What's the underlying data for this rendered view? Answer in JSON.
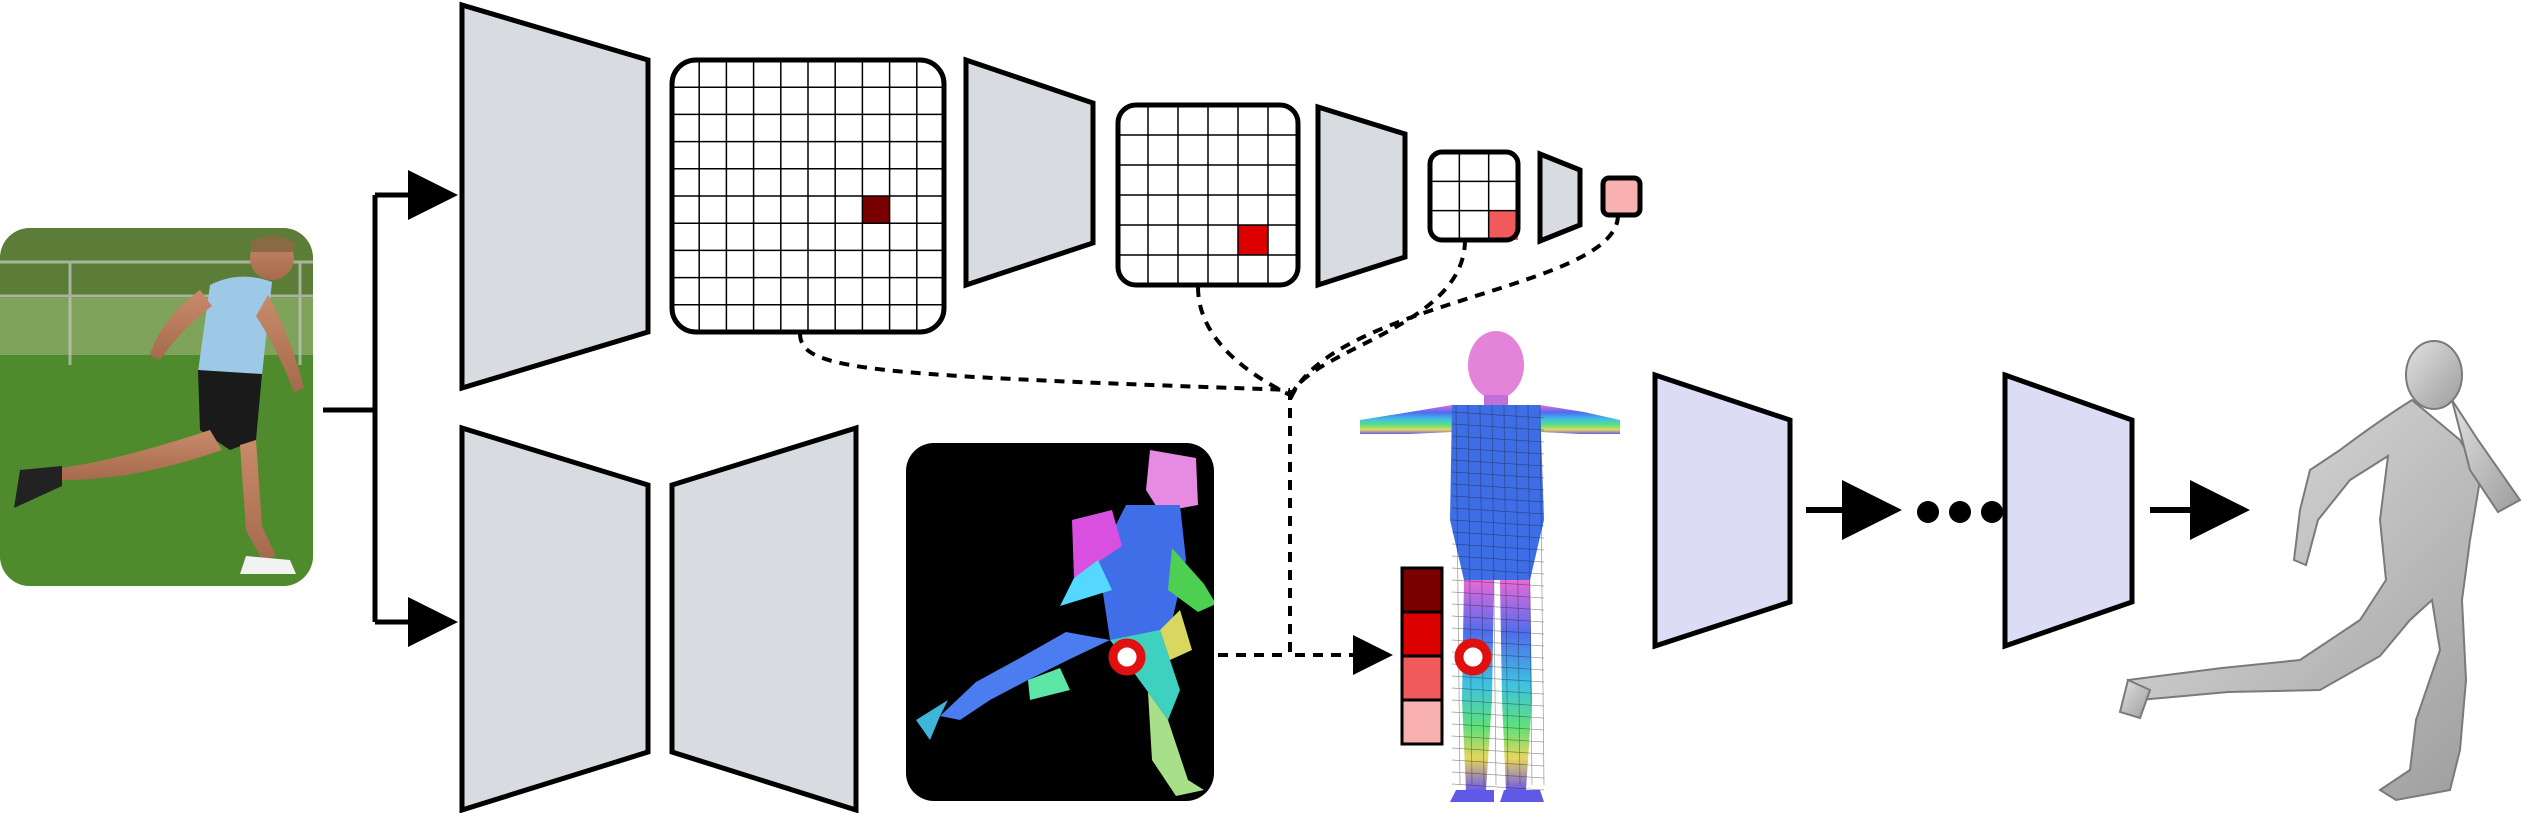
{
  "colors": {
    "encoder_fill": "#d8dce1",
    "regressor_fill": "#dcdcf4",
    "stroke": "#000000",
    "grid_background": "#ffffff",
    "feature_dark": "#7a0000",
    "feature_red": "#dd0000",
    "feature_mid": "#f05a5a",
    "feature_light": "#f8b0b0",
    "iuv_background": "#000000",
    "mesh_gray": "#c8c8c8",
    "photo_grass": "#4f8a2c",
    "photo_sky": "#7fa35a"
  },
  "diagram": {
    "input": {
      "icon": "running-person-photo"
    },
    "ellipsis_dot_count": 3,
    "feature_stack_levels": 4,
    "grid_sizes": [
      10,
      6,
      3,
      1
    ]
  }
}
